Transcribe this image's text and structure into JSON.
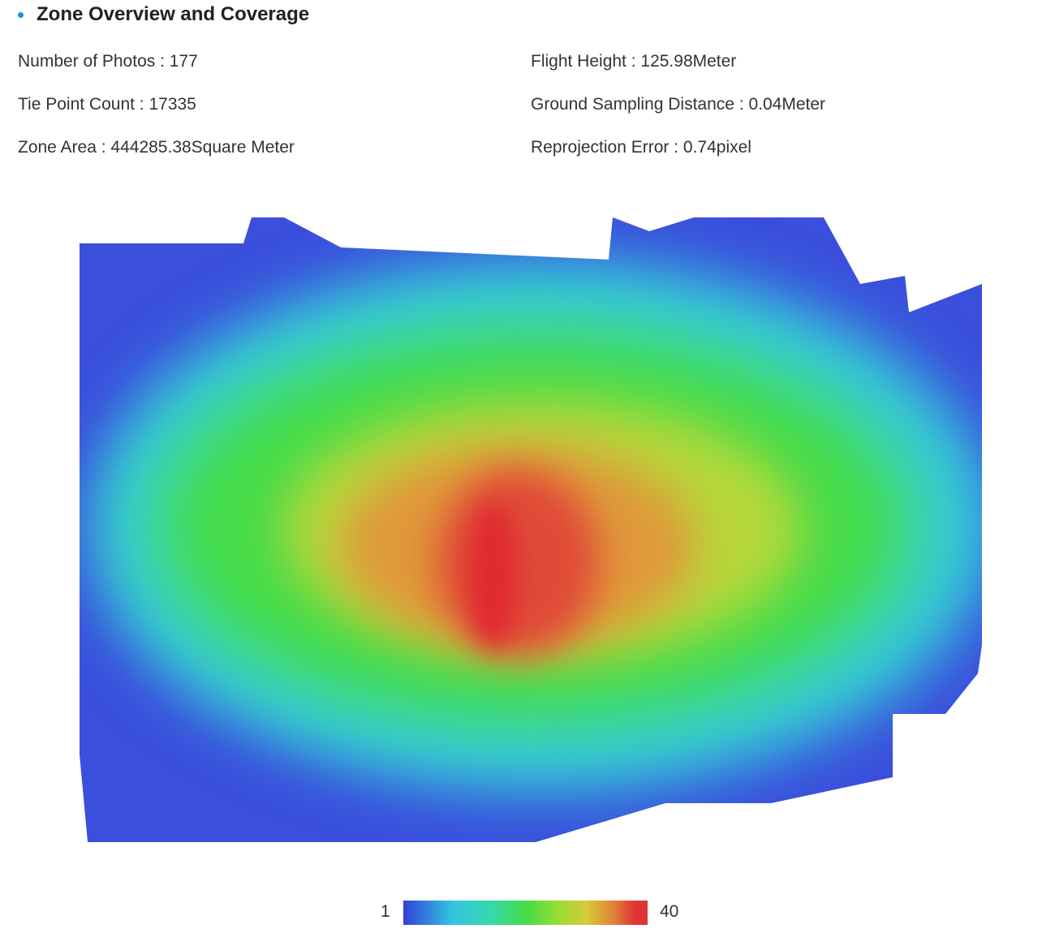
{
  "header": {
    "title": "Zone Overview and Coverage"
  },
  "stats": {
    "photos": "Number of Photos : 177",
    "tie_points": "Tie Point Count : 17335",
    "zone_area": "Zone Area : 444285.38Square Meter",
    "flight_height": "Flight Height : 125.98Meter",
    "gsd": "Ground Sampling Distance : 0.04Meter",
    "reprojection": "Reprojection Error : 0.74pixel"
  },
  "chart_data": {
    "type": "heatmap",
    "description_of_scale": "",
    "colorbar": {
      "min": 1,
      "max": 40,
      "min_label": "1",
      "max_label": "40",
      "colors": [
        "#3340d8",
        "#34c4e0",
        "#36d8b0",
        "#44dc48",
        "#8ede34",
        "#d8cc38",
        "#e07a38",
        "#e03434"
      ]
    }
  }
}
